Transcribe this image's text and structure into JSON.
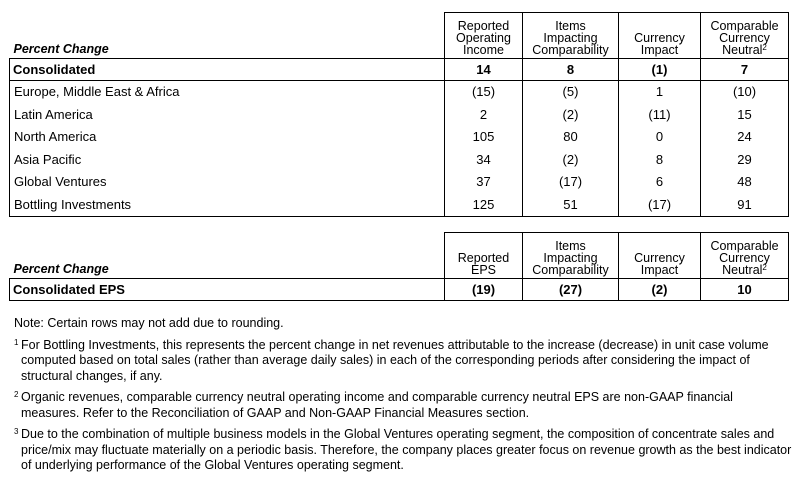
{
  "table1": {
    "label": "Percent Change",
    "headers": {
      "c1": [
        "Reported",
        "Operating",
        "Income"
      ],
      "c2": [
        "Items",
        "Impacting",
        "Comparability"
      ],
      "c3": [
        "Currency",
        "Impact"
      ],
      "c4": [
        "Comparable",
        "Currency",
        "Neutral"
      ],
      "c4_sup": "2"
    },
    "consolidated": {
      "label": "Consolidated",
      "v1": "14",
      "v2": "8",
      "v3": "(1)",
      "v4": "7"
    },
    "rows": [
      {
        "label": "Europe, Middle East & Africa",
        "v1": "(15)",
        "v2": "(5)",
        "v3": "1",
        "v4": "(10)"
      },
      {
        "label": "Latin America",
        "v1": "2",
        "v2": "(2)",
        "v3": "(11)",
        "v4": "15"
      },
      {
        "label": "North America",
        "v1": "105",
        "v2": "80",
        "v3": "0",
        "v4": "24"
      },
      {
        "label": "Asia Pacific",
        "v1": "34",
        "v2": "(2)",
        "v3": "8",
        "v4": "29"
      },
      {
        "label": "Global Ventures",
        "v1": "37",
        "v2": "(17)",
        "v3": "6",
        "v4": "48"
      },
      {
        "label": "Bottling Investments",
        "v1": "125",
        "v2": "51",
        "v3": "(17)",
        "v4": "91"
      }
    ]
  },
  "table2": {
    "label": "Percent Change",
    "headers": {
      "c1": [
        "Reported",
        "EPS"
      ],
      "c2": [
        "Items",
        "Impacting",
        "Comparability"
      ],
      "c3": [
        "Currency",
        "Impact"
      ],
      "c4": [
        "Comparable",
        "Currency",
        "Neutral"
      ],
      "c4_sup": "2"
    },
    "consolidated": {
      "label": "Consolidated EPS",
      "v1": "(19)",
      "v2": "(27)",
      "v3": "(2)",
      "v4": "10"
    }
  },
  "notes": {
    "note": "Note: Certain rows may not add due to rounding.",
    "footnotes": [
      {
        "mark": "1",
        "text": "For Bottling Investments, this represents the percent change in net revenues attributable to the increase (decrease) in unit case volume computed based on total sales (rather than average daily sales) in each of the corresponding periods after considering the impact of structural changes, if any."
      },
      {
        "mark": "2",
        "text": "Organic revenues, comparable currency neutral operating income and comparable currency neutral EPS are non-GAAP financial measures. Refer to the Reconciliation of GAAP and Non-GAAP Financial Measures section."
      },
      {
        "mark": "3",
        "text": "Due to the combination of multiple business models in the Global Ventures operating segment, the composition of concentrate sales and price/mix may fluctuate materially on a periodic basis. Therefore, the company places greater focus on revenue growth as the best indicator of underlying performance of the Global Ventures operating segment."
      }
    ]
  }
}
